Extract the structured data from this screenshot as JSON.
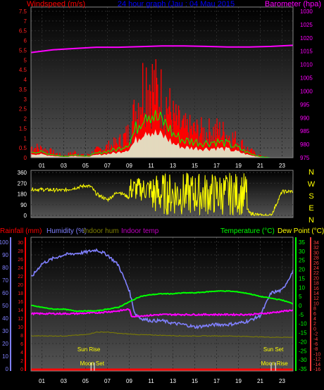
{
  "header": {
    "windspeed_label": "Windspeed (m/s)",
    "title": "24 hour graph (Jau : 04 Mau 2015",
    "barometer_label": "Barometer (hpa)"
  },
  "bottom_header": {
    "rainfall_label": "Rainfall (mm)",
    "humidity_label": "Humidity (%)",
    "indoor_hum_label": "Indoor hum",
    "indoor_temp_label": "Indoor temp",
    "temperature_label": "Temperature (°C)",
    "dewpoint_label": "Dew Point (°C)"
  },
  "compass": [
    "N",
    "W",
    "S",
    "E",
    "N"
  ],
  "annotations": {
    "sun_rise": "Sun Rise",
    "moon_set": "Moon Set",
    "sun_set": "Sun Set",
    "moon_rise": "Moon Rise"
  },
  "colors": {
    "windspeed": "#ff0000",
    "gust": "#00ff00",
    "barometer": "#ff00ff",
    "direction": "#ffff00",
    "humidity": "#8080ff",
    "temperature": "#00ff00",
    "indoor_temp": "#ff00ff",
    "indoor_hum": "#808000",
    "rainfall": "#ff0000"
  },
  "chart_data": [
    {
      "type": "area",
      "name": "wind-barometer",
      "x_ticks": [
        "01",
        "03",
        "05",
        "07",
        "09",
        "11",
        "13",
        "15",
        "17",
        "19",
        "21",
        "23"
      ],
      "y_left_ticks": [
        "0",
        "0.5",
        "1",
        "1.5",
        "2",
        "2.5",
        "3",
        "3.5",
        "4",
        "4.5",
        "5",
        "5.5",
        "6",
        "6.5",
        "7",
        "7.5"
      ],
      "y_left_lim": [
        0,
        7.5
      ],
      "y_right_ticks": [
        "975",
        "980",
        "985",
        "990",
        "995",
        "1000",
        "1005",
        "1010",
        "1015",
        "1020",
        "1025",
        "1030"
      ],
      "y_right_lim": [
        975,
        1030
      ],
      "series": [
        {
          "name": "Windspeed (m/s)",
          "x": [
            0,
            1,
            2,
            3,
            4,
            5,
            6,
            7,
            8,
            9,
            10,
            10.5,
            11,
            11.5,
            12,
            12.5,
            13,
            14,
            15,
            16,
            17,
            18,
            19,
            20,
            21,
            22,
            23,
            24
          ],
          "y": [
            0.6,
            0.5,
            0.3,
            0.1,
            0.3,
            0.1,
            0.4,
            0.6,
            0.8,
            1.4,
            3.5,
            4.5,
            4.2,
            3.6,
            3.4,
            3.0,
            2.2,
            1.6,
            1.5,
            1.4,
            1.5,
            1.3,
            0.9,
            0.4,
            0.1,
            0.0,
            0.0,
            0.0
          ]
        },
        {
          "name": "Barometer (hpa)",
          "x": [
            0,
            2,
            4,
            6,
            8,
            10,
            12,
            14,
            16,
            18,
            20,
            22,
            24
          ],
          "y": [
            1014.5,
            1015.5,
            1016,
            1016.5,
            1016.5,
            1016.7,
            1017,
            1017,
            1016.8,
            1016.6,
            1016.6,
            1016.8,
            1017.2
          ]
        }
      ]
    },
    {
      "type": "line",
      "name": "wind-direction",
      "x_ticks": [],
      "y_ticks": [
        "0",
        "90",
        "180",
        "270",
        "360"
      ],
      "ylim": [
        0,
        360
      ],
      "series": [
        {
          "name": "Direction",
          "x": [
            0,
            3,
            5,
            5.5,
            6,
            7,
            8,
            9,
            10,
            11,
            12,
            13,
            14,
            15,
            16,
            17,
            18,
            19,
            20,
            21,
            22,
            23,
            24
          ],
          "y": [
            220,
            210,
            250,
            240,
            180,
            130,
            200,
            150,
            230,
            240,
            230,
            220,
            210,
            210,
            200,
            200,
            200,
            210,
            20,
            0,
            0,
            200,
            200
          ]
        }
      ]
    },
    {
      "type": "line",
      "name": "temperature-humidity",
      "x_ticks": [
        "01",
        "03",
        "05",
        "07",
        "09",
        "11",
        "13",
        "15",
        "17",
        "19",
        "21",
        "23"
      ],
      "y_rain_ticks": [
        "0",
        "2",
        "4",
        "6",
        "8",
        "10",
        "12",
        "14",
        "16",
        "18",
        "20",
        "22",
        "24",
        "26",
        "28",
        "30"
      ],
      "y_hum_ticks": [
        "0",
        "10",
        "20",
        "30",
        "40",
        "50",
        "60",
        "70",
        "80",
        "90",
        "100"
      ],
      "y_temp_ticks": [
        "-35",
        "-30",
        "-25",
        "-20",
        "-15",
        "-10",
        "-5",
        "0",
        "5",
        "10",
        "15",
        "20",
        "25",
        "30",
        "35"
      ],
      "y_dew_ticks": [
        "-16",
        "-14",
        "-12",
        "-10",
        "-8",
        "-6",
        "-4",
        "-2",
        "0",
        "2",
        "4",
        "6",
        "8",
        "10",
        "12",
        "14",
        "16",
        "18",
        "20",
        "22",
        "24",
        "26",
        "28",
        "30",
        "32",
        "34"
      ],
      "hum_lim": [
        0,
        100
      ],
      "temp_lim": [
        -35,
        35
      ],
      "series": [
        {
          "name": "Humidity (%)",
          "x": [
            0,
            1,
            2,
            3,
            4,
            5,
            6,
            7,
            8,
            9,
            9.5,
            10,
            11,
            12,
            13,
            14,
            15,
            16,
            17,
            18,
            19,
            20,
            21,
            22,
            23,
            24
          ],
          "y": [
            72,
            83,
            87,
            90,
            91,
            92,
            94,
            90,
            82,
            62,
            44,
            40,
            38,
            38,
            36,
            35,
            33,
            34,
            35,
            35,
            36,
            38,
            42,
            60,
            62,
            77
          ]
        },
        {
          "name": "Temperature (°C)",
          "x": [
            0,
            1,
            2,
            3,
            4,
            5,
            6,
            7,
            8,
            9,
            10,
            11,
            12,
            13,
            14,
            15,
            16,
            17,
            18,
            19,
            20,
            21,
            22,
            23,
            24
          ],
          "y": [
            0,
            -1,
            -2,
            -2,
            -3,
            -3,
            -3,
            -2,
            -1,
            2,
            5,
            6,
            6.5,
            6.5,
            7,
            7,
            7.5,
            8,
            8,
            7.5,
            6.5,
            5,
            4,
            3,
            1
          ]
        },
        {
          "name": "Indoor temp",
          "x": [
            0,
            2,
            4,
            6,
            8,
            9,
            9.2,
            12,
            16,
            20,
            22,
            24
          ],
          "y": [
            -4.5,
            -4.5,
            -4.5,
            -4,
            -3,
            -2,
            -6,
            -5,
            -5,
            -5,
            -4,
            -2.5
          ]
        },
        {
          "name": "Indoor hum",
          "x": [
            0,
            3,
            5,
            6,
            7,
            8,
            10,
            14,
            18,
            22,
            24
          ],
          "y": [
            26,
            26,
            27,
            29,
            29,
            28,
            27,
            26,
            26,
            25,
            25
          ]
        }
      ]
    }
  ]
}
